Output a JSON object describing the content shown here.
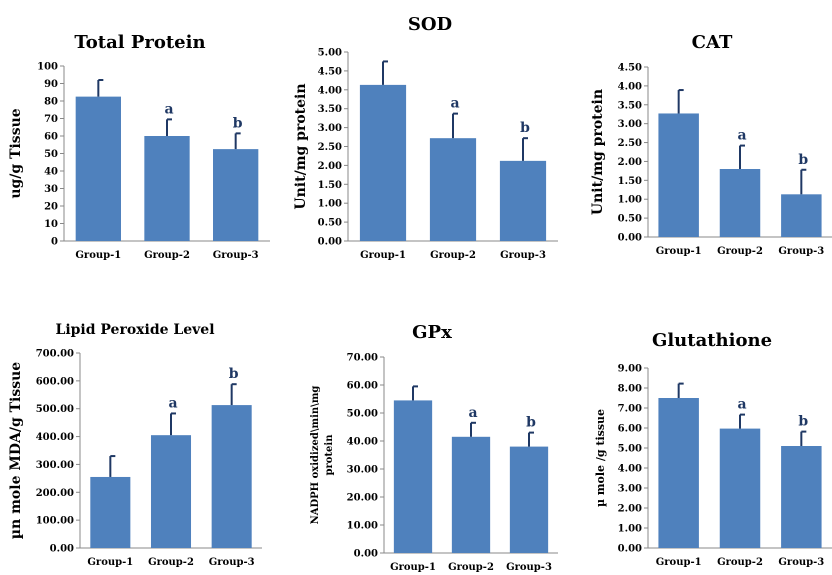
{
  "chart_data": [
    {
      "type": "bar",
      "title": "Total Protein",
      "ylabel": "ug/g Tissue",
      "categories": [
        "Group-1",
        "Group-2",
        "Group-3"
      ],
      "values": [
        82.5,
        60,
        52.5
      ],
      "errors": [
        9.5,
        9.5,
        9
      ],
      "sig": [
        "",
        "a",
        "b"
      ],
      "ylim": [
        0,
        100
      ],
      "ticks": [
        "0",
        "10",
        "20",
        "30",
        "40",
        "50",
        "60",
        "70",
        "80",
        "90",
        "100"
      ],
      "tick_values": [
        0,
        10,
        20,
        30,
        40,
        50,
        60,
        70,
        80,
        90,
        100
      ]
    },
    {
      "type": "bar",
      "title": "SOD",
      "ylabel": "Unit/mg protein",
      "categories": [
        "Group-1",
        "Group-2",
        "Group-3"
      ],
      "values": [
        4.13,
        2.72,
        2.12
      ],
      "errors": [
        0.62,
        0.65,
        0.6
      ],
      "sig": [
        "",
        "a",
        "b"
      ],
      "ylim": [
        0,
        5
      ],
      "ticks": [
        "0.00",
        "0.50",
        "1.00",
        "1.50",
        "2.00",
        "2.50",
        "3.00",
        "3.50",
        "4.00",
        "4.50",
        "5.00"
      ],
      "tick_values": [
        0,
        0.5,
        1,
        1.5,
        2,
        2.5,
        3,
        3.5,
        4,
        4.5,
        5
      ]
    },
    {
      "type": "bar",
      "title": "CAT",
      "ylabel": "Unit/mg protein",
      "categories": [
        "Group-1",
        "Group-2",
        "Group-3"
      ],
      "values": [
        3.27,
        1.8,
        1.13
      ],
      "errors": [
        0.62,
        0.62,
        0.65
      ],
      "sig": [
        "",
        "a",
        "b"
      ],
      "ylim": [
        0,
        4.5
      ],
      "ticks": [
        "0.00",
        "0.50",
        "1.00",
        "1.50",
        "2.00",
        "2.50",
        "3.00",
        "3.50",
        "4.00",
        "4.50"
      ],
      "tick_values": [
        0,
        0.5,
        1,
        1.5,
        2,
        2.5,
        3,
        3.5,
        4,
        4.5
      ]
    },
    {
      "type": "bar",
      "title": "Lipid Peroxide Level",
      "ylabel": "µn mole MDA/g Tissue",
      "categories": [
        "Group-1",
        "Group-2",
        "Group-3"
      ],
      "values": [
        255,
        405,
        513
      ],
      "errors": [
        75,
        78,
        75
      ],
      "sig": [
        "",
        "a",
        "b"
      ],
      "ylim": [
        0,
        700
      ],
      "ticks": [
        "0.00",
        "100.00",
        "200.00",
        "300.00",
        "400.00",
        "500.00",
        "600.00",
        "700.00"
      ],
      "tick_values": [
        0,
        100,
        200,
        300,
        400,
        500,
        600,
        700
      ]
    },
    {
      "type": "bar",
      "title": "GPx",
      "ylabel": "NADPH oxidized\\min\\mg protein",
      "categories": [
        "Group-1",
        "Group-2",
        "Group-3"
      ],
      "values": [
        54.5,
        41.5,
        38
      ],
      "errors": [
        5,
        5,
        5
      ],
      "sig": [
        "",
        "a",
        "b"
      ],
      "ylim": [
        0,
        70
      ],
      "ticks": [
        "0.00",
        "10.00",
        "20.00",
        "30.00",
        "40.00",
        "50.00",
        "60.00",
        "70.00"
      ],
      "tick_values": [
        0,
        10,
        20,
        30,
        40,
        50,
        60,
        70
      ]
    },
    {
      "type": "bar",
      "title": "Glutathione",
      "ylabel": "µ mole /g tissue",
      "categories": [
        "Group-1",
        "Group-2",
        "Group-3"
      ],
      "values": [
        7.5,
        5.97,
        5.1
      ],
      "errors": [
        0.72,
        0.7,
        0.72
      ],
      "sig": [
        "",
        "a",
        "b"
      ],
      "ylim": [
        0,
        9
      ],
      "ticks": [
        "0.00",
        "1.00",
        "2.00",
        "3.00",
        "4.00",
        "5.00",
        "6.00",
        "7.00",
        "8.00",
        "9.00"
      ],
      "tick_values": [
        0,
        1,
        2,
        3,
        4,
        5,
        6,
        7,
        8,
        9
      ]
    }
  ]
}
